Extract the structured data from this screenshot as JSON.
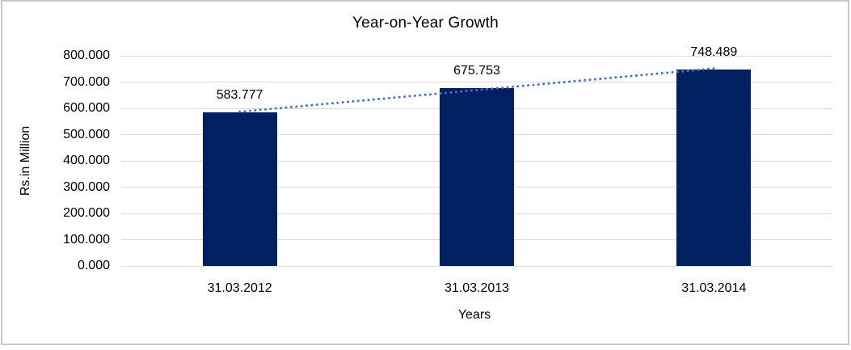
{
  "chart_data": {
    "type": "bar",
    "title": "Year-on-Year Growth",
    "categories": [
      "31.03.2012",
      "31.03.2013",
      "31.03.2014"
    ],
    "values": [
      583.777,
      675.753,
      748.489
    ],
    "data_labels": [
      "583.777",
      "675.753",
      "748.489"
    ],
    "xlabel": "Years",
    "ylabel": "Rs.in Million",
    "ylim": [
      0,
      800
    ],
    "ytick_step": 100,
    "ytick_labels": [
      "0.000",
      "100.000",
      "200.000",
      "300.000",
      "400.000",
      "500.000",
      "600.000",
      "700.000",
      "800.000"
    ],
    "grid": true,
    "legend": "none",
    "bar_color": "#002060",
    "gridline_color": "#d9d9d9",
    "text_color": "#000000",
    "trendline": {
      "type": "linear",
      "style": "dotted",
      "color": "#4472c4"
    }
  }
}
